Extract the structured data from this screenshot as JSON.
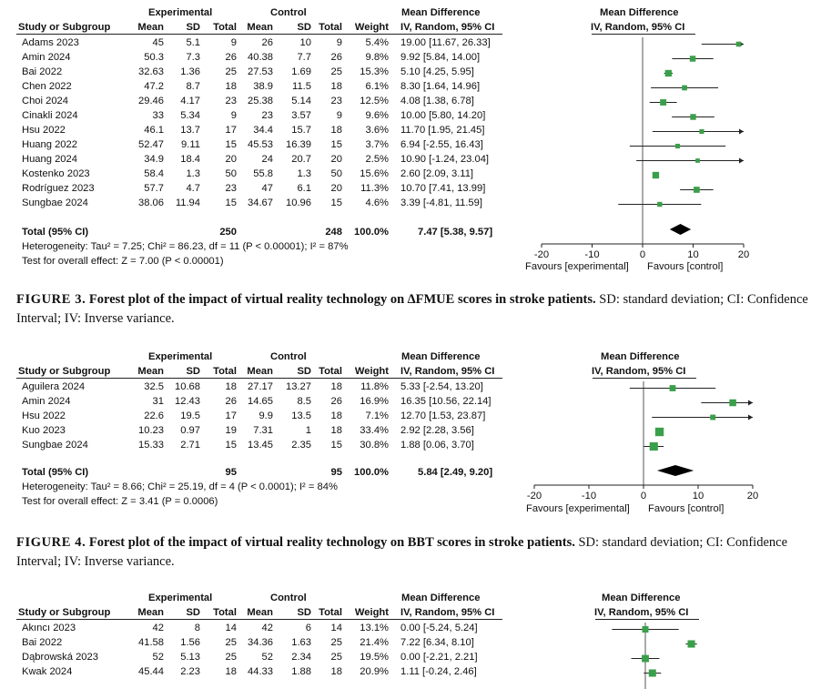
{
  "plots": [
    {
      "hdr": {
        "experimental": "Experimental",
        "control": "Control",
        "md_group": "Mean Difference",
        "md_col": "IV, Random, 95% CI",
        "study": "Study or Subgroup",
        "mean": "Mean",
        "sd": "SD",
        "total": "Total",
        "weight": "Weight",
        "plot_title": "Mean Difference",
        "plot_sub": "IV, Random, 95% CI"
      },
      "rows": [
        {
          "study": "Adams 2023",
          "em": "45",
          "esd": "5.1",
          "et": "9",
          "cm": "26",
          "csd": "10",
          "ct": "9",
          "w": "5.4%",
          "ci": "19.00 [11.67, 26.33]"
        },
        {
          "study": "Amin 2024",
          "em": "50.3",
          "esd": "7.3",
          "et": "26",
          "cm": "40.38",
          "csd": "7.7",
          "ct": "26",
          "w": "9.8%",
          "ci": "9.92 [5.84, 14.00]"
        },
        {
          "study": "Bai 2022",
          "em": "32.63",
          "esd": "1.36",
          "et": "25",
          "cm": "27.53",
          "csd": "1.69",
          "ct": "25",
          "w": "15.3%",
          "ci": "5.10 [4.25, 5.95]"
        },
        {
          "study": "Chen 2022",
          "em": "47.2",
          "esd": "8.7",
          "et": "18",
          "cm": "38.9",
          "csd": "11.5",
          "ct": "18",
          "w": "6.1%",
          "ci": "8.30 [1.64, 14.96]"
        },
        {
          "study": "Choi 2024",
          "em": "29.46",
          "esd": "4.17",
          "et": "23",
          "cm": "25.38",
          "csd": "5.14",
          "ct": "23",
          "w": "12.5%",
          "ci": "4.08 [1.38, 6.78]"
        },
        {
          "study": "Cinakli 2024",
          "em": "33",
          "esd": "5.34",
          "et": "9",
          "cm": "23",
          "csd": "3.57",
          "ct": "9",
          "w": "9.6%",
          "ci": "10.00 [5.80, 14.20]"
        },
        {
          "study": "Hsu 2022",
          "em": "46.1",
          "esd": "13.7",
          "et": "17",
          "cm": "34.4",
          "csd": "15.7",
          "ct": "18",
          "w": "3.6%",
          "ci": "11.70 [1.95, 21.45]"
        },
        {
          "study": "Huang 2022",
          "em": "52.47",
          "esd": "9.11",
          "et": "15",
          "cm": "45.53",
          "csd": "16.39",
          "ct": "15",
          "w": "3.7%",
          "ci": "6.94 [-2.55, 16.43]"
        },
        {
          "study": "Huang 2024",
          "em": "34.9",
          "esd": "18.4",
          "et": "20",
          "cm": "24",
          "csd": "20.7",
          "ct": "20",
          "w": "2.5%",
          "ci": "10.90 [-1.24, 23.04]"
        },
        {
          "study": "Kostenko 2023",
          "em": "58.4",
          "esd": "1.3",
          "et": "50",
          "cm": "55.8",
          "csd": "1.3",
          "ct": "50",
          "w": "15.6%",
          "ci": "2.60 [2.09, 3.11]"
        },
        {
          "study": "Rodríguez 2023",
          "em": "57.7",
          "esd": "4.7",
          "et": "23",
          "cm": "47",
          "csd": "6.1",
          "ct": "20",
          "w": "11.3%",
          "ci": "10.70 [7.41, 13.99]"
        },
        {
          "study": "Sungbae 2024",
          "em": "38.06",
          "esd": "11.94",
          "et": "15",
          "cm": "34.67",
          "csd": "10.96",
          "ct": "15",
          "w": "4.6%",
          "ci": "3.39 [-4.81, 11.59]"
        }
      ],
      "total": {
        "label": "Total (95% CI)",
        "et": "250",
        "ct": "248",
        "w": "100.0%",
        "ci": "7.47 [5.38, 9.57]"
      },
      "heterogeneity": "Heterogeneity: Tau² = 7.25; Chi² = 86.23, df = 11 (P < 0.00001); I² = 87%",
      "overall": "Test for overall effect: Z = 7.00 (P < 0.00001)",
      "axis": {
        "ticks": [
          "-20",
          "-10",
          "0",
          "10",
          "20"
        ],
        "left_label": "Favours [experimental]",
        "right_label": "Favours [control]"
      }
    },
    {
      "hdr": {
        "experimental": "Experimental",
        "control": "Control",
        "md_group": "Mean Difference",
        "md_col": "IV, Random, 95% CI",
        "study": "Study or Subgroup",
        "mean": "Mean",
        "sd": "SD",
        "total": "Total",
        "weight": "Weight",
        "plot_title": "Mean Difference",
        "plot_sub": "IV, Random, 95% CI"
      },
      "rows": [
        {
          "study": "Aguilera 2024",
          "em": "32.5",
          "esd": "10.68",
          "et": "18",
          "cm": "27.17",
          "csd": "13.27",
          "ct": "18",
          "w": "11.8%",
          "ci": "5.33 [-2.54, 13.20]"
        },
        {
          "study": "Amin 2024",
          "em": "31",
          "esd": "12.43",
          "et": "26",
          "cm": "14.65",
          "csd": "8.5",
          "ct": "26",
          "w": "16.9%",
          "ci": "16.35 [10.56, 22.14]"
        },
        {
          "study": "Hsu 2022",
          "em": "22.6",
          "esd": "19.5",
          "et": "17",
          "cm": "9.9",
          "csd": "13.5",
          "ct": "18",
          "w": "7.1%",
          "ci": "12.70 [1.53, 23.87]"
        },
        {
          "study": "Kuo 2023",
          "em": "10.23",
          "esd": "0.97",
          "et": "19",
          "cm": "7.31",
          "csd": "1",
          "ct": "18",
          "w": "33.4%",
          "ci": "2.92 [2.28, 3.56]"
        },
        {
          "study": "Sungbae 2024",
          "em": "15.33",
          "esd": "2.71",
          "et": "15",
          "cm": "13.45",
          "csd": "2.35",
          "ct": "15",
          "w": "30.8%",
          "ci": "1.88 [0.06, 3.70]"
        }
      ],
      "total": {
        "label": "Total (95% CI)",
        "et": "95",
        "ct": "95",
        "w": "100.0%",
        "ci": "5.84 [2.49, 9.20]"
      },
      "heterogeneity": "Heterogeneity: Tau² = 8.66; Chi² = 25.19, df = 4 (P < 0.0001); I² = 84%",
      "overall": "Test for overall effect: Z = 3.41 (P = 0.0006)",
      "axis": {
        "ticks": [
          "-20",
          "-10",
          "0",
          "10",
          "20"
        ],
        "left_label": "Favours [experimental]",
        "right_label": "Favours [control]"
      }
    },
    {
      "hdr": {
        "experimental": "Experimental",
        "control": "Control",
        "md_group": "Mean Difference",
        "md_col": "IV, Random, 95% CI",
        "study": "Study or Subgroup",
        "mean": "Mean",
        "sd": "SD",
        "total": "Total",
        "weight": "Weight",
        "plot_title": "Mean Difference",
        "plot_sub": "IV, Random, 95% CI"
      },
      "rows": [
        {
          "study": "Akıncı 2023",
          "em": "42",
          "esd": "8",
          "et": "14",
          "cm": "42",
          "csd": "6",
          "ct": "14",
          "w": "13.1%",
          "ci": "0.00 [-5.24, 5.24]"
        },
        {
          "study": "Bai 2022",
          "em": "41.58",
          "esd": "1.56",
          "et": "25",
          "cm": "34.36",
          "csd": "1.63",
          "ct": "25",
          "w": "21.4%",
          "ci": "7.22 [6.34, 8.10]"
        },
        {
          "study": "Dąbrowská 2023",
          "em": "52",
          "esd": "5.13",
          "et": "25",
          "cm": "52",
          "csd": "2.34",
          "ct": "25",
          "w": "19.5%",
          "ci": "0.00 [-2.21, 2.21]"
        },
        {
          "study": "Kwak 2024",
          "em": "45.44",
          "esd": "2.23",
          "et": "18",
          "cm": "44.33",
          "csd": "1.88",
          "ct": "18",
          "w": "20.9%",
          "ci": "1.11 [-0.24, 2.46]"
        }
      ]
    }
  ],
  "captions": [
    {
      "label": "FIGURE 3.",
      "title": "Forest plot of the impact of virtual reality technology on ∆FMUE scores in stroke patients.",
      "rest": "SD: standard deviation; CI: Confidence Interval; IV: Inverse variance."
    },
    {
      "label": "FIGURE 4.",
      "title": "Forest plot of the impact of virtual reality technology on BBT scores in stroke patients.",
      "rest": "SD: standard deviation; CI: Confidence Interval; IV: Inverse variance."
    }
  ],
  "chart_data": [
    {
      "type": "forest",
      "title": "Mean Difference IV, Random, 95% CI (FMUE)",
      "xlim": [
        -20,
        20
      ],
      "categories": [
        "Adams 2023",
        "Amin 2024",
        "Bai 2022",
        "Chen 2022",
        "Choi 2024",
        "Cinakli 2024",
        "Hsu 2022",
        "Huang 2022",
        "Huang 2024",
        "Kostenko 2023",
        "Rodríguez 2023",
        "Sungbae 2024"
      ],
      "md": [
        19.0,
        9.92,
        5.1,
        8.3,
        4.08,
        10.0,
        11.7,
        6.94,
        10.9,
        2.6,
        10.7,
        3.39
      ],
      "lower": [
        11.67,
        5.84,
        4.25,
        1.64,
        1.38,
        5.8,
        1.95,
        -2.55,
        -1.24,
        2.09,
        7.41,
        -4.81
      ],
      "upper": [
        26.33,
        14.0,
        5.95,
        14.96,
        6.78,
        14.2,
        21.45,
        16.43,
        23.04,
        3.11,
        13.99,
        11.59
      ],
      "weights": [
        5.4,
        9.8,
        15.3,
        6.1,
        12.5,
        9.6,
        3.6,
        3.7,
        2.5,
        15.6,
        11.3,
        4.6
      ],
      "pooled": {
        "md": 7.47,
        "lower": 5.38,
        "upper": 9.57
      }
    },
    {
      "type": "forest",
      "title": "Mean Difference IV, Random, 95% CI (BBT)",
      "xlim": [
        -20,
        20
      ],
      "categories": [
        "Aguilera 2024",
        "Amin 2024",
        "Hsu 2022",
        "Kuo 2023",
        "Sungbae 2024"
      ],
      "md": [
        5.33,
        16.35,
        12.7,
        2.92,
        1.88
      ],
      "lower": [
        -2.54,
        10.56,
        1.53,
        2.28,
        0.06
      ],
      "upper": [
        13.2,
        22.14,
        23.87,
        3.56,
        3.7
      ],
      "weights": [
        11.8,
        16.9,
        7.1,
        33.4,
        30.8
      ],
      "pooled": {
        "md": 5.84,
        "lower": 2.49,
        "upper": 9.2
      }
    },
    {
      "type": "forest",
      "title": "Mean Difference IV, Random, 95% CI",
      "xlim": [
        -20,
        20
      ],
      "categories": [
        "Akıncı 2023",
        "Bai 2022",
        "Dąbrowská 2023",
        "Kwak 2024"
      ],
      "md": [
        0.0,
        7.22,
        0.0,
        1.11
      ],
      "lower": [
        -5.24,
        6.34,
        -2.21,
        -0.24
      ],
      "upper": [
        5.24,
        8.1,
        2.21,
        2.46
      ],
      "weights": [
        13.1,
        21.4,
        19.5,
        20.9
      ]
    }
  ]
}
